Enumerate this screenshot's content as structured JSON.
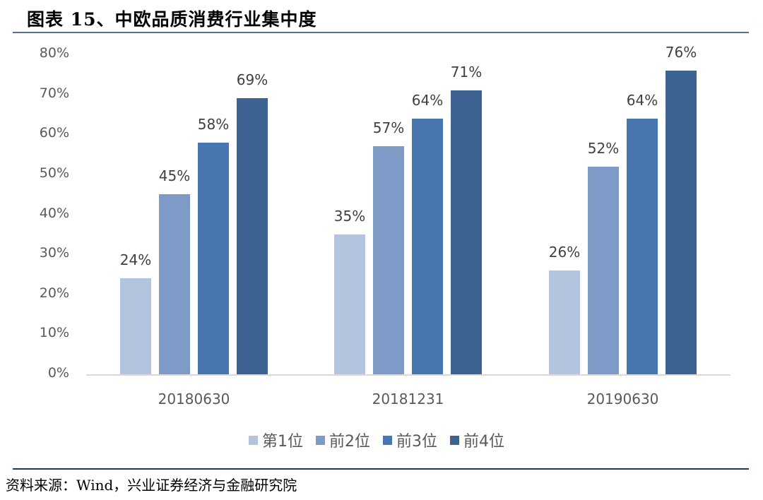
{
  "header": {
    "title": "图表 15、中欧品质消费行业集中度"
  },
  "footer": {
    "source": "资料来源：Wind，兴业证券经济与金融研究院"
  },
  "colors": {
    "s1": "#b4c3de",
    "s2": "#7e9bc8",
    "s3": "#4876b0",
    "s4": "#3c6392"
  },
  "chart_data": {
    "type": "bar",
    "title": "中欧品质消费行业集中度",
    "xlabel": "",
    "ylabel": "",
    "ylim": [
      0,
      80
    ],
    "yticks": [
      "0%",
      "10%",
      "20%",
      "30%",
      "40%",
      "50%",
      "60%",
      "70%",
      "80%"
    ],
    "grid": false,
    "legend_position": "bottom",
    "categories": [
      "20180630",
      "20181231",
      "20190630"
    ],
    "series": [
      {
        "name": "第1位",
        "values": [
          24,
          35,
          26
        ],
        "labels": [
          "24%",
          "35%",
          "26%"
        ]
      },
      {
        "name": "前2位",
        "values": [
          45,
          57,
          52
        ],
        "labels": [
          "45%",
          "57%",
          "52%"
        ]
      },
      {
        "name": "前3位",
        "values": [
          58,
          64,
          64
        ],
        "labels": [
          "58%",
          "64%",
          "64%"
        ]
      },
      {
        "name": "前4位",
        "values": [
          69,
          71,
          76
        ],
        "labels": [
          "69%",
          "71%",
          "76%"
        ]
      }
    ]
  }
}
